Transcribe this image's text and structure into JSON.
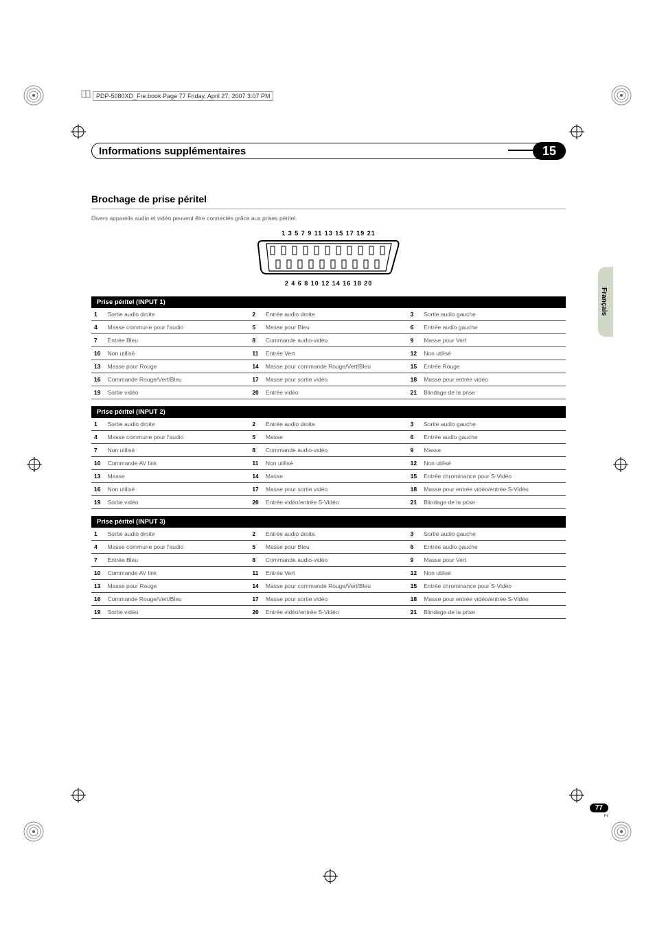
{
  "filepath": "PDP-5080XD_Fre.book  Page 77  Friday, April 27, 2007  3:07 PM",
  "chapter": {
    "title": "Informations supplémentaires",
    "number": "15"
  },
  "section_heading": "Brochage de prise péritel",
  "intro": "Divers appareils audio et vidéo peuvent être connectés grâce aux prises péritel.",
  "scart_top": "1  3  5  7  9 11 13 15 17 19 21",
  "scart_bottom": "2  4  6  8 10 12 14 16 18 20",
  "colors": {
    "divider": "#8ca080",
    "tab_bg": "#d0d8c8",
    "header_bg": "#000000",
    "text_muted": "#555555"
  },
  "side_tab": "Français",
  "page": {
    "number": "77",
    "lang": "Fr"
  },
  "tables": [
    {
      "title": "Prise péritel (INPUT 1)",
      "rows": [
        [
          "1",
          "Sortie audio droite",
          "2",
          "Entrée audio droite",
          "3",
          "Sortie audio gauche"
        ],
        [
          "4",
          "Masse commune pour l'audio",
          "5",
          "Masse pour Bleu",
          "6",
          "Entrée audio gauche"
        ],
        [
          "7",
          "Entrée Bleu",
          "8",
          "Commande audio-vidéo",
          "9",
          "Masse pour Vert"
        ],
        [
          "10",
          "Non utilisé",
          "11",
          "Entrée Vert",
          "12",
          "Non utilisé"
        ],
        [
          "13",
          "Masse pour Rouge",
          "14",
          "Masse pour commande Rouge/Vert/Bleu",
          "15",
          "Entrée Rouge"
        ],
        [
          "16",
          "Commande Rouge/Vert/Bleu",
          "17",
          "Masse pour sortie vidéo",
          "18",
          "Masse pour entrée vidéo"
        ],
        [
          "19",
          "Sortie vidéo",
          "20",
          "Entrée vidéo",
          "21",
          "Blindage de la prise"
        ]
      ]
    },
    {
      "title": "Prise péritel (INPUT 2)",
      "rows": [
        [
          "1",
          "Sortie audio droite",
          "2",
          "Entrée audio droite",
          "3",
          "Sortie audio gauche"
        ],
        [
          "4",
          "Masse commune pour l'audio",
          "5",
          "Masse",
          "6",
          "Entrée audio gauche"
        ],
        [
          "7",
          "Non utilisé",
          "8",
          "Commande audio-vidéo",
          "9",
          "Masse"
        ],
        [
          "10",
          "Commande AV link",
          "11",
          "Non utilisé",
          "12",
          "Non utilisé"
        ],
        [
          "13",
          "Masse",
          "14",
          "Masse",
          "15",
          "Entrée chrominance pour S-Vidéo"
        ],
        [
          "16",
          "Non utilisé",
          "17",
          "Masse pour sortie vidéo",
          "18",
          "Masse pour entrée vidéo/entrée S-Vidéo"
        ],
        [
          "19",
          "Sortie vidéo",
          "20",
          "Entrée vidéo/entrée S-Vidéo",
          "21",
          "Blindage de la prise"
        ]
      ]
    },
    {
      "title": "Prise péritel (INPUT 3)",
      "rows": [
        [
          "1",
          "Sortie audio droite",
          "2",
          "Entrée audio droite",
          "3",
          "Sortie audio gauche"
        ],
        [
          "4",
          "Masse commune pour l'audio",
          "5",
          "Masse pour Bleu",
          "6",
          "Entrée audio gauche"
        ],
        [
          "7",
          "Entrée Bleu",
          "8",
          "Commande audio-vidéo",
          "9",
          "Masse pour Vert"
        ],
        [
          "10",
          "Commande AV link",
          "11",
          "Entrée Vert",
          "12",
          "Non utilisé"
        ],
        [
          "13",
          "Masse pour Rouge",
          "14",
          "Masse pour commande Rouge/Vert/Bleu",
          "15",
          "Entrée chrominance pour S-Vidéo"
        ],
        [
          "16",
          "Commande Rouge/Vert/Bleu",
          "17",
          "Masse pour sortie vidéo",
          "18",
          "Masse pour entrée vidéo/entrée S-Vidéo"
        ],
        [
          "19",
          "Sortie vidéo",
          "20",
          "Entrée vidéo/entrée S-Vidéo",
          "21",
          "Blindage de la prise"
        ]
      ]
    }
  ]
}
